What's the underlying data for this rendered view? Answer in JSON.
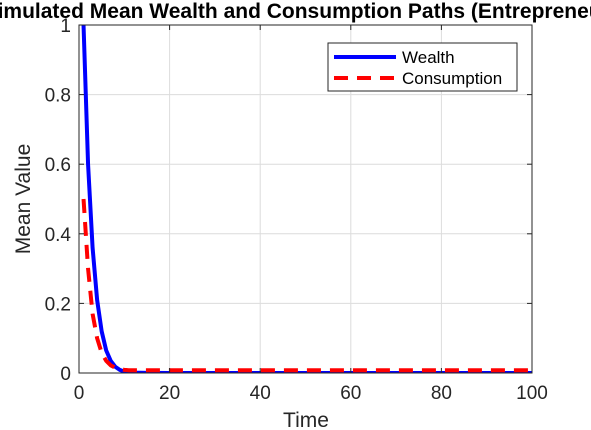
{
  "chart_data": {
    "type": "line",
    "title": "Simulated Mean Wealth and Consumption Paths (Entrepreneurs)",
    "xlabel": "Time",
    "ylabel": "Mean Value",
    "xlim": [
      0,
      100
    ],
    "ylim": [
      0,
      1
    ],
    "xticks": [
      0,
      20,
      40,
      60,
      80,
      100
    ],
    "yticks": [
      0,
      0.2,
      0.4,
      0.6,
      0.8,
      1
    ],
    "xtick_labels": [
      "0",
      "20",
      "40",
      "60",
      "80",
      "100"
    ],
    "ytick_labels": [
      "0",
      "0.2",
      "0.4",
      "0.6",
      "0.8",
      "1"
    ],
    "grid": true,
    "legend_position": "top-right",
    "series": [
      {
        "name": "Wealth",
        "color": "#0000ff",
        "style": "solid",
        "x": [
          1,
          2,
          3,
          4,
          5,
          6,
          7,
          8,
          9,
          10,
          11,
          12,
          15,
          20,
          30,
          40,
          50,
          60,
          70,
          80,
          90,
          100
        ],
        "y": [
          1.0,
          0.6,
          0.36,
          0.21,
          0.12,
          0.065,
          0.035,
          0.018,
          0.009,
          0.004,
          0.002,
          0.001,
          0.0005,
          0.0,
          0.0,
          0.0,
          0.0,
          0.0,
          0.0,
          0.0,
          0.0,
          0.0
        ]
      },
      {
        "name": "Consumption",
        "color": "#ff0000",
        "style": "dashed",
        "x": [
          1,
          2,
          3,
          4,
          5,
          6,
          7,
          8,
          9,
          10,
          11,
          12,
          15,
          20,
          30,
          40,
          50,
          60,
          70,
          80,
          90,
          100
        ],
        "y": [
          0.5,
          0.3,
          0.17,
          0.1,
          0.058,
          0.035,
          0.022,
          0.015,
          0.011,
          0.009,
          0.008,
          0.008,
          0.008,
          0.008,
          0.008,
          0.008,
          0.008,
          0.008,
          0.008,
          0.008,
          0.008,
          0.008
        ]
      }
    ]
  }
}
